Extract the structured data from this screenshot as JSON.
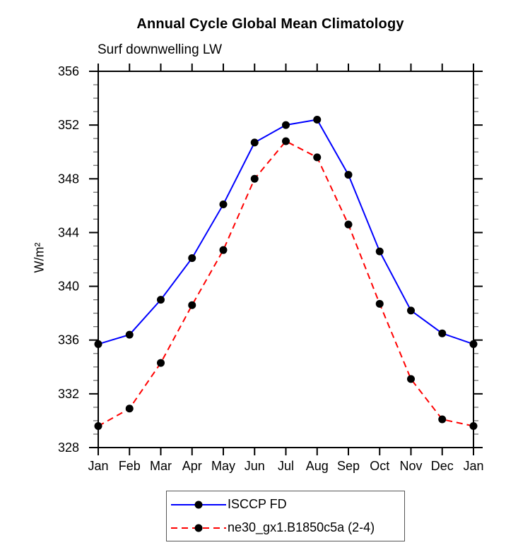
{
  "title": "Annual Cycle Global Mean Climatology",
  "subtitle": "Surf downwelling LW",
  "chart_data": {
    "type": "line",
    "title": "Annual Cycle Global Mean Climatology",
    "subtitle": "Surf downwelling LW",
    "ylabel": "W/m²",
    "xlabel": "",
    "categories": [
      "Jan",
      "Feb",
      "Mar",
      "Apr",
      "May",
      "Jun",
      "Jul",
      "Aug",
      "Sep",
      "Oct",
      "Nov",
      "Dec",
      "Jan"
    ],
    "series": [
      {
        "name": "ISCCP FD",
        "color": "#0000ff",
        "line_style": "solid",
        "line_width": 2,
        "marker": "filled-circle",
        "marker_color": "#000000",
        "values": [
          335.7,
          336.4,
          339.0,
          342.1,
          346.1,
          350.7,
          352.0,
          352.4,
          348.3,
          342.6,
          338.2,
          336.5,
          335.7
        ]
      },
      {
        "name": "ne30_gx1.B1850c5a (2-4)",
        "color": "#ff0000",
        "line_style": "dashed",
        "line_width": 2,
        "marker": "filled-circle",
        "marker_color": "#000000",
        "values": [
          329.6,
          330.9,
          334.3,
          338.6,
          342.7,
          348.0,
          350.8,
          349.6,
          344.6,
          338.7,
          333.1,
          330.1,
          329.6
        ]
      }
    ],
    "ylim": [
      328,
      356
    ],
    "y_major_step": 4,
    "y_minor_step": 1,
    "y_tick_labels": [
      "328",
      "332",
      "336",
      "340",
      "344",
      "348",
      "352",
      "356"
    ],
    "grid": false,
    "legend_position": "bottom-center",
    "axis_color": "#000000"
  }
}
